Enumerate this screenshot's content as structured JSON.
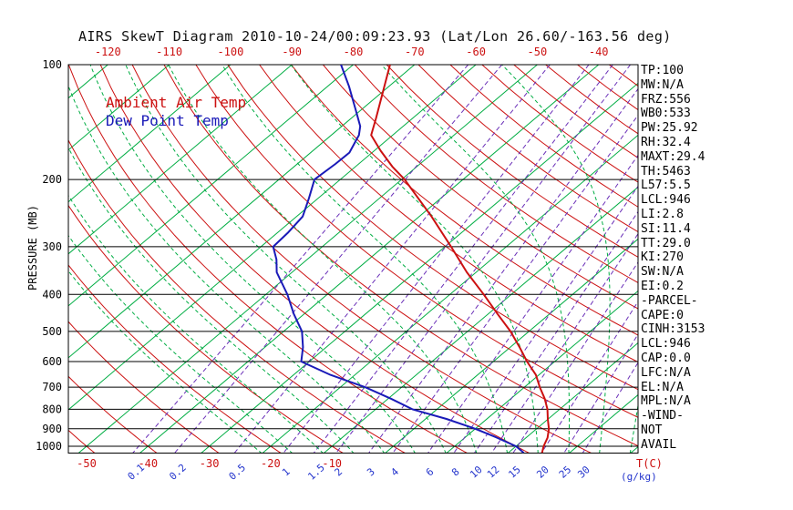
{
  "title": "AIRS SkewT Diagram 2010-10-24/00:09:23.93 (Lat/Lon 26.60/-163.56 deg)",
  "legend": {
    "ambient": {
      "label": "Ambient Air Temp",
      "color": "#cc1111"
    },
    "dewpoint": {
      "label": "Dew Point Temp",
      "color": "#1a1ab8"
    }
  },
  "stats_panel": {
    "lines": [
      "TP:100",
      "MW:N/A",
      "FRZ:556",
      "WB0:533",
      "PW:25.92",
      "RH:32.4",
      "MAXT:29.4",
      "TH:5463",
      "L57:5.5",
      "LCL:946",
      "LI:2.8",
      "SI:11.4",
      "TT:29.0",
      "KI:270",
      "SW:N/A",
      "EI:0.2",
      "-PARCEL-",
      "CAPE:0",
      "CINH:3153",
      "LCL:946",
      "CAP:0.0",
      "LFC:N/A",
      "EL:N/A",
      "MPL:N/A",
      "-WIND-",
      "NOT",
      "AVAIL"
    ]
  },
  "chart_data": {
    "type": "line",
    "chart_kind": "skew-t-log-p",
    "title": "AIRS SkewT Diagram",
    "datetime": "2010-10-24/00:09:23.93",
    "lat_lon_deg": "26.60/-163.56",
    "ylabel": "PRESSURE (MB)",
    "y_scale": "log",
    "ylim_mb": [
      100,
      1040
    ],
    "pressure_ticks_mb": [
      100,
      200,
      300,
      400,
      500,
      600,
      700,
      800,
      900,
      1000
    ],
    "top_temp_ticks_c": [
      -120,
      -110,
      -100,
      -90,
      -80,
      -70,
      -60,
      -50,
      -40
    ],
    "bottom_temp_ticks_c": [
      -50,
      -40,
      -30,
      -20,
      -10
    ],
    "temp_unit": "T(C)",
    "mixing_ratio_unit": "(g/kg)",
    "grid": {
      "isotherms_c": {
        "min": -120,
        "max": 40,
        "step": 10,
        "color": "#00ad43",
        "style": "solid"
      },
      "dry_adiabats_c": {
        "min": -50,
        "max": 190,
        "step": 10,
        "color": "#cc1111",
        "style": "solid"
      },
      "moist_adiabats_surface_c": {
        "min": -20,
        "max": 50,
        "step": 5,
        "color": "#00ad43",
        "style": "dashed"
      },
      "mixing_ratio_g_kg": {
        "values": [
          0.1,
          0.2,
          0.5,
          1,
          1.5,
          2,
          3,
          4,
          6,
          8,
          10,
          12,
          15,
          20,
          25,
          30
        ],
        "color": "#6a2fb8",
        "style": "dashed",
        "label_color": "#2233cc"
      }
    },
    "series": [
      {
        "name": "Ambient Air Temp",
        "color": "#cc1111",
        "points_p_mb_t_c": [
          [
            100,
            -74
          ],
          [
            138,
            -66
          ],
          [
            153,
            -63.5
          ],
          [
            168,
            -59
          ],
          [
            185,
            -54
          ],
          [
            200,
            -49.5
          ],
          [
            250,
            -38
          ],
          [
            300,
            -29
          ],
          [
            350,
            -21.5
          ],
          [
            400,
            -14.5
          ],
          [
            450,
            -8.5
          ],
          [
            500,
            -3
          ],
          [
            550,
            1.5
          ],
          [
            600,
            5.5
          ],
          [
            650,
            9.5
          ],
          [
            700,
            12.5
          ],
          [
            750,
            15.5
          ],
          [
            800,
            18
          ],
          [
            850,
            20
          ],
          [
            900,
            22
          ],
          [
            950,
            23.5
          ],
          [
            1000,
            24.5
          ],
          [
            1040,
            25.5
          ]
        ]
      },
      {
        "name": "Dew Point Temp",
        "color": "#1a1ab8",
        "points_p_mb_t_c": [
          [
            100,
            -82
          ],
          [
            114,
            -76.5
          ],
          [
            131,
            -71
          ],
          [
            145,
            -67
          ],
          [
            153,
            -65.5
          ],
          [
            170,
            -63.7
          ],
          [
            182,
            -63.8
          ],
          [
            200,
            -64.2
          ],
          [
            224,
            -61.5
          ],
          [
            250,
            -59
          ],
          [
            275,
            -58.3
          ],
          [
            300,
            -58
          ],
          [
            324,
            -55
          ],
          [
            350,
            -52.5
          ],
          [
            400,
            -46.5
          ],
          [
            450,
            -41.7
          ],
          [
            500,
            -37
          ],
          [
            550,
            -33.8
          ],
          [
            600,
            -31.3
          ],
          [
            650,
            -24
          ],
          [
            700,
            -16
          ],
          [
            750,
            -9.6
          ],
          [
            800,
            -4
          ],
          [
            848,
            3.4
          ],
          [
            900,
            10
          ],
          [
            947,
            15
          ],
          [
            1000,
            20
          ],
          [
            1040,
            22.5
          ]
        ]
      }
    ]
  }
}
